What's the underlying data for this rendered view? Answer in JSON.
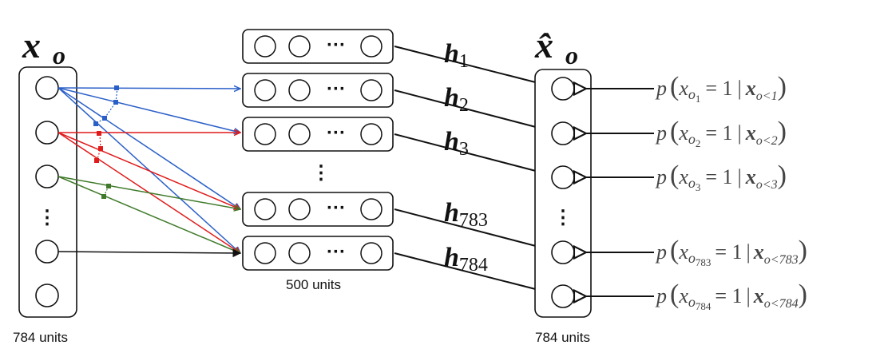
{
  "input": {
    "symbol": "x",
    "sub": "o",
    "caption": "784 units",
    "dots": "⋮"
  },
  "hidden": {
    "labels": [
      {
        "base": "h",
        "sub": "1"
      },
      {
        "base": "h",
        "sub": "2"
      },
      {
        "base": "h",
        "sub": "3"
      },
      {
        "base": "h",
        "sub": "783"
      },
      {
        "base": "h",
        "sub": "784"
      }
    ],
    "unit_dots": "···",
    "between_dots": "⋮",
    "caption": "500 units"
  },
  "output": {
    "symbol": "x̂",
    "sub": "o",
    "caption": "784 units",
    "dots": "⋮"
  },
  "probabilities": [
    {
      "p": "p",
      "x": "x",
      "o": "o",
      "idx": "1",
      "eq": "= 1",
      "given": "x",
      "lt": "o<1"
    },
    {
      "p": "p",
      "x": "x",
      "o": "o",
      "idx": "2",
      "eq": "= 1",
      "given": "x",
      "lt": "o<2"
    },
    {
      "p": "p",
      "x": "x",
      "o": "o",
      "idx": "3",
      "eq": "= 1",
      "given": "x",
      "lt": "o<3"
    },
    {
      "p": "p",
      "x": "x",
      "o": "o",
      "idx": "783",
      "eq": "= 1",
      "given": "x",
      "lt": "o<783"
    },
    {
      "p": "p",
      "x": "x",
      "o": "o",
      "idx": "784",
      "eq": "= 1",
      "given": "x",
      "lt": "o<784"
    }
  ],
  "colors": {
    "line": "#111111",
    "blue": "#2a5fc8",
    "red": "#e01b1b",
    "green": "#3f7a2a",
    "prob_text": "#444444"
  }
}
